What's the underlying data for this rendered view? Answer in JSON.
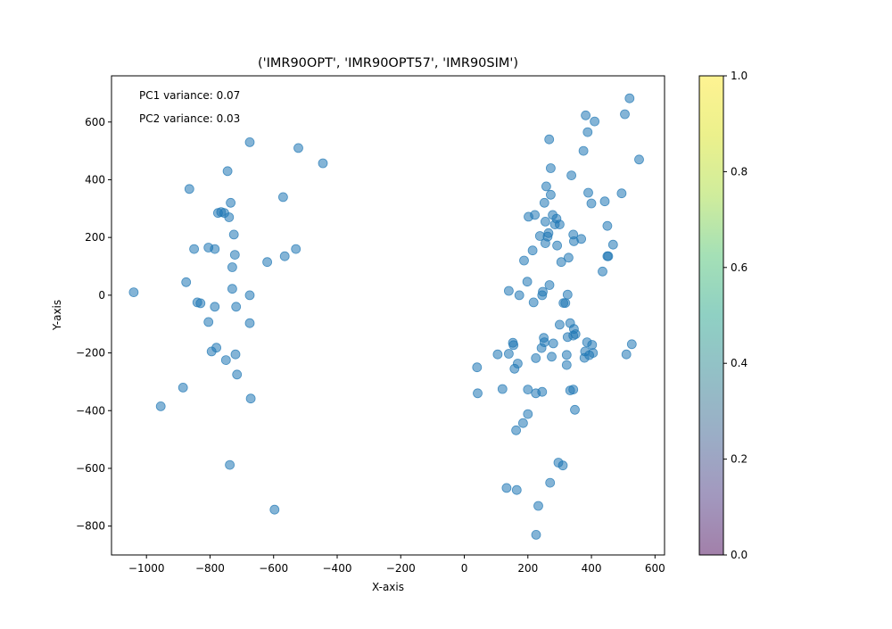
{
  "chart_data": {
    "type": "scatter",
    "title": "('IMR90OPT', 'IMR90OPT57', 'IMR90SIM')",
    "xlabel": "X-axis",
    "ylabel": "Y-axis",
    "xlim": [
      -1110,
      630
    ],
    "ylim": [
      -900,
      760
    ],
    "xticks": [
      -1000,
      -800,
      -600,
      -400,
      -200,
      0,
      200,
      400,
      600
    ],
    "yticks": [
      -800,
      -600,
      -400,
      -200,
      0,
      200,
      400,
      600
    ],
    "grid": false,
    "annotations": [
      "PC1 variance: 0.07",
      "PC2 variance: 0.03"
    ],
    "point_color": "#1f77b4",
    "point_alpha": 0.55,
    "colorbar": {
      "range": [
        0,
        1
      ],
      "ticks": [
        "0.0",
        "0.2",
        "0.4",
        "0.6",
        "0.8",
        "1.0"
      ],
      "colormap": "viridis",
      "alpha": 0.5
    },
    "points": [
      [
        -1040,
        10
      ],
      [
        -955,
        -385
      ],
      [
        -885,
        -320
      ],
      [
        -875,
        45
      ],
      [
        -865,
        368
      ],
      [
        -850,
        160
      ],
      [
        -840,
        -25
      ],
      [
        -830,
        -28
      ],
      [
        -805,
        165
      ],
      [
        -805,
        -93
      ],
      [
        -795,
        -195
      ],
      [
        -785,
        160
      ],
      [
        -785,
        -40
      ],
      [
        -780,
        -182
      ],
      [
        -775,
        285
      ],
      [
        -765,
        288
      ],
      [
        -755,
        285
      ],
      [
        -750,
        -225
      ],
      [
        -745,
        430
      ],
      [
        -740,
        270
      ],
      [
        -738,
        -588
      ],
      [
        -735,
        320
      ],
      [
        -730,
        97
      ],
      [
        -730,
        22
      ],
      [
        -725,
        210
      ],
      [
        -722,
        140
      ],
      [
        -720,
        -205
      ],
      [
        -718,
        -40
      ],
      [
        -715,
        -275
      ],
      [
        -675,
        530
      ],
      [
        -675,
        0
      ],
      [
        -675,
        -97
      ],
      [
        -672,
        -358
      ],
      [
        -620,
        115
      ],
      [
        -597,
        -743
      ],
      [
        -570,
        340
      ],
      [
        -565,
        135
      ],
      [
        -530,
        160
      ],
      [
        -522,
        510
      ],
      [
        -445,
        457
      ],
      [
        40,
        -250
      ],
      [
        42,
        -340
      ],
      [
        105,
        -205
      ],
      [
        120,
        -325
      ],
      [
        133,
        -668
      ],
      [
        140,
        -203
      ],
      [
        140,
        15
      ],
      [
        153,
        -165
      ],
      [
        155,
        -173
      ],
      [
        158,
        -255
      ],
      [
        163,
        -468
      ],
      [
        165,
        -675
      ],
      [
        168,
        -237
      ],
      [
        173,
        0
      ],
      [
        185,
        -443
      ],
      [
        188,
        120
      ],
      [
        198,
        47
      ],
      [
        200,
        -327
      ],
      [
        200,
        -412
      ],
      [
        202,
        272
      ],
      [
        215,
        155
      ],
      [
        218,
        -25
      ],
      [
        222,
        278
      ],
      [
        225,
        -340
      ],
      [
        225,
        -218
      ],
      [
        226,
        -830
      ],
      [
        233,
        -730
      ],
      [
        238,
        205
      ],
      [
        243,
        -183
      ],
      [
        245,
        -335
      ],
      [
        245,
        0
      ],
      [
        247,
        12
      ],
      [
        250,
        -148
      ],
      [
        252,
        -163
      ],
      [
        252,
        320
      ],
      [
        255,
        255
      ],
      [
        255,
        180
      ],
      [
        258,
        377
      ],
      [
        262,
        203
      ],
      [
        265,
        215
      ],
      [
        267,
        540
      ],
      [
        268,
        35
      ],
      [
        270,
        -650
      ],
      [
        272,
        440
      ],
      [
        272,
        348
      ],
      [
        275,
        -213
      ],
      [
        278,
        278
      ],
      [
        280,
        -167
      ],
      [
        285,
        245
      ],
      [
        290,
        265
      ],
      [
        292,
        172
      ],
      [
        296,
        -580
      ],
      [
        300,
        245
      ],
      [
        300,
        -102
      ],
      [
        305,
        115
      ],
      [
        310,
        -590
      ],
      [
        312,
        -27
      ],
      [
        318,
        -27
      ],
      [
        322,
        -242
      ],
      [
        322,
        -207
      ],
      [
        325,
        2
      ],
      [
        325,
        -145
      ],
      [
        328,
        130
      ],
      [
        333,
        -97
      ],
      [
        333,
        -330
      ],
      [
        337,
        415
      ],
      [
        343,
        210
      ],
      [
        343,
        -327
      ],
      [
        343,
        -140
      ],
      [
        345,
        187
      ],
      [
        345,
        -117
      ],
      [
        348,
        -397
      ],
      [
        350,
        -135
      ],
      [
        368,
        195
      ],
      [
        375,
        500
      ],
      [
        378,
        -217
      ],
      [
        380,
        -195
      ],
      [
        382,
        623
      ],
      [
        386,
        -163
      ],
      [
        388,
        565
      ],
      [
        390,
        355
      ],
      [
        393,
        -208
      ],
      [
        400,
        318
      ],
      [
        402,
        -172
      ],
      [
        405,
        -200
      ],
      [
        410,
        602
      ],
      [
        435,
        82
      ],
      [
        442,
        325
      ],
      [
        450,
        135
      ],
      [
        450,
        240
      ],
      [
        453,
        135
      ],
      [
        468,
        175
      ],
      [
        495,
        353
      ],
      [
        505,
        627
      ],
      [
        510,
        -205
      ],
      [
        520,
        682
      ],
      [
        527,
        -170
      ],
      [
        550,
        470
      ]
    ]
  }
}
